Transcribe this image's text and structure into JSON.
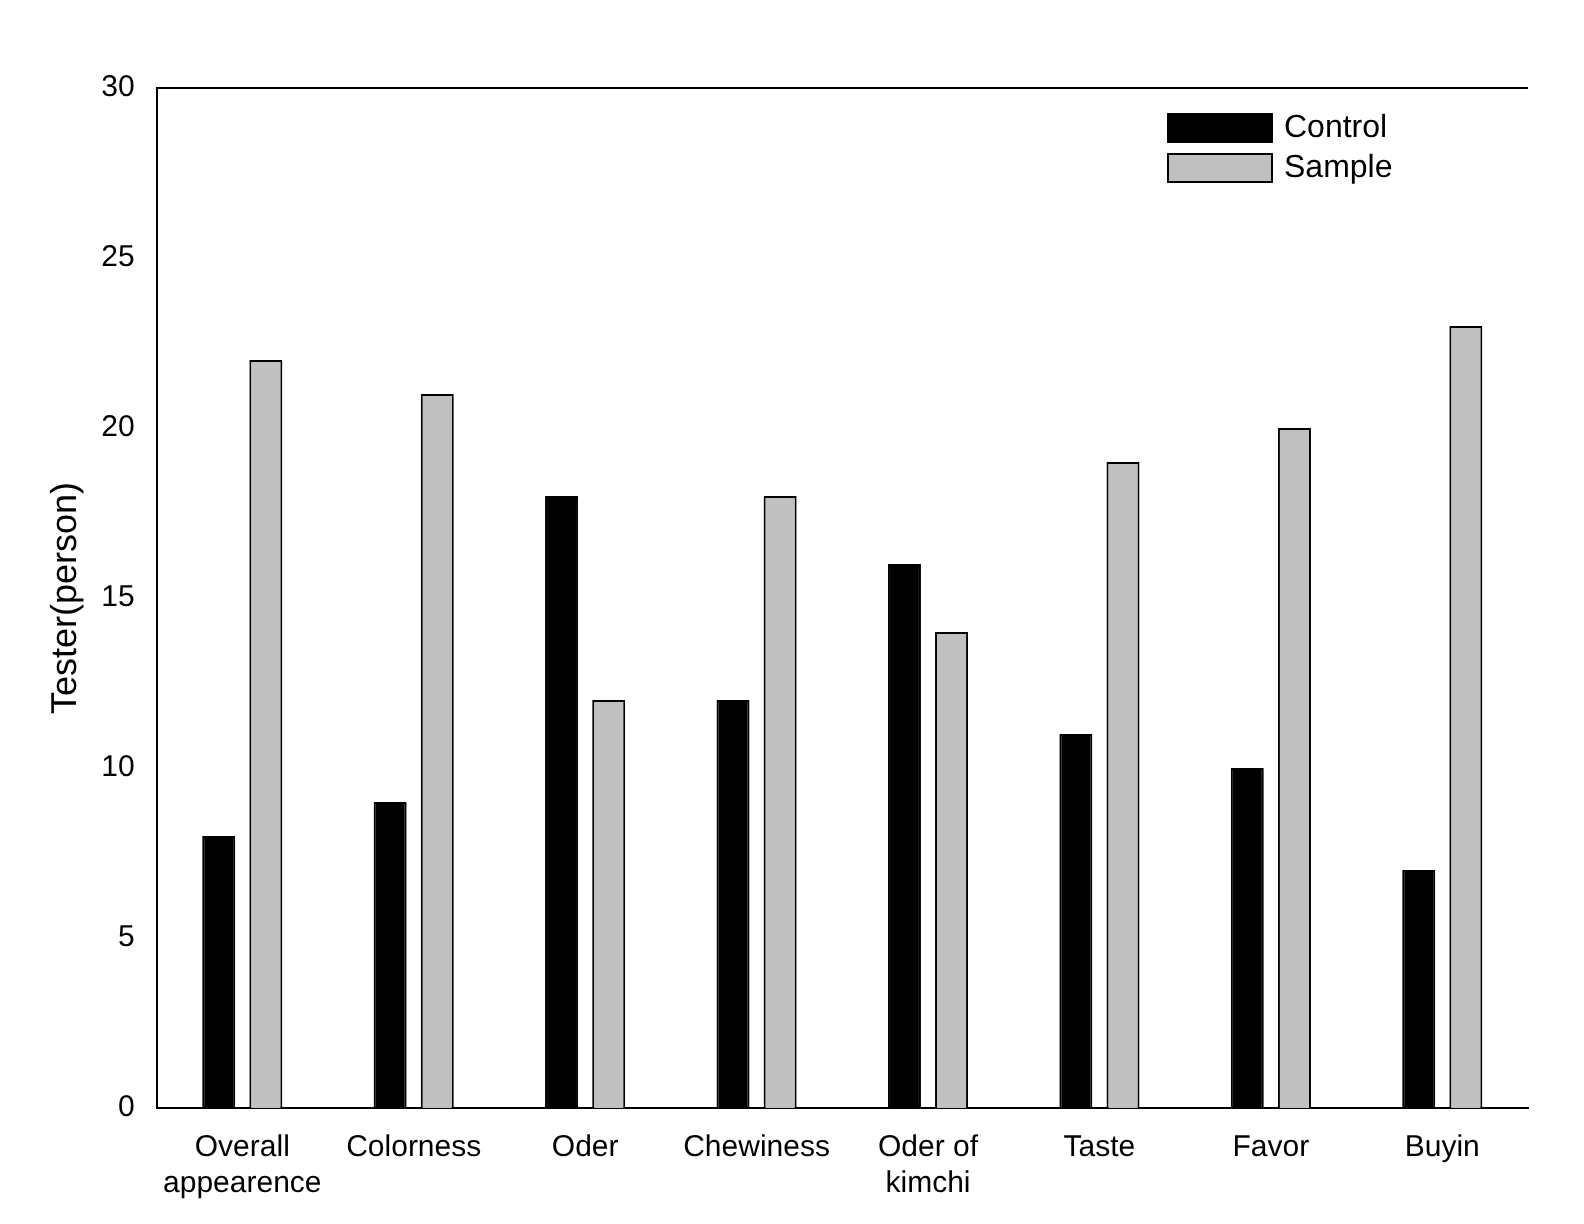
{
  "chart_data": {
    "type": "bar",
    "ylabel": "Tester(person)",
    "categories": [
      "Overall appearence",
      "Colorness",
      "Oder",
      "Chewiness",
      "Oder of kimchi",
      "Taste",
      "Favor",
      "Buyin"
    ],
    "series": [
      {
        "name": "Control",
        "color": "#000000",
        "values": [
          8,
          9,
          18,
          12,
          16,
          11,
          10,
          7
        ]
      },
      {
        "name": "Sample",
        "color": "#c0c0c0",
        "values": [
          22,
          21,
          12,
          18,
          14,
          19,
          20,
          23
        ]
      }
    ],
    "ylim": [
      0,
      30
    ],
    "yticks": [
      0,
      5,
      10,
      15,
      20,
      25,
      30
    ],
    "grid": false,
    "legend": "top right"
  }
}
